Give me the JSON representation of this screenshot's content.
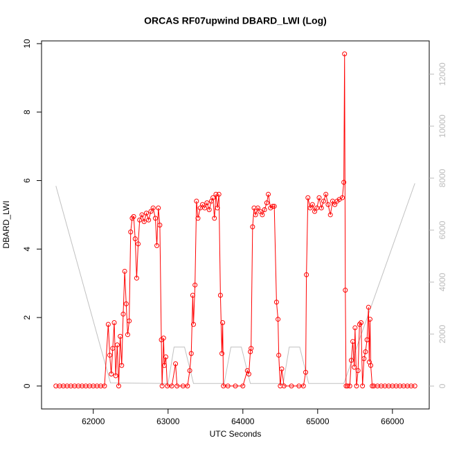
{
  "chart_data": {
    "type": "line",
    "title": "ORCAS RF07upwind DBARD_LWI (Log)",
    "xlabel": "UTC Seconds",
    "ylabel": "DBARD_LWI",
    "xlim": [
      61308,
      66492
    ],
    "xticks": [
      62000,
      63000,
      64000,
      65000,
      66000
    ],
    "ylim": [
      -0.67,
      10.08
    ],
    "yticks": [
      0,
      2,
      4,
      6,
      8,
      10
    ],
    "y2lim": [
      -880,
      13280
    ],
    "y2ticks": [
      0,
      2000,
      4000,
      6000,
      8000,
      10000,
      12000
    ],
    "series": [
      {
        "color": "#ff0000",
        "markers": true,
        "x": [
          61500,
          61550,
          61600,
          61650,
          61700,
          61750,
          61800,
          61850,
          61900,
          61950,
          62000,
          62050,
          62100,
          62150,
          62200,
          62220,
          62240,
          62260,
          62280,
          62300,
          62320,
          62340,
          62360,
          62380,
          62400,
          62420,
          62440,
          62460,
          62480,
          62500,
          62520,
          62540,
          62560,
          62580,
          62600,
          62620,
          62650,
          62680,
          62710,
          62740,
          62770,
          62800,
          62830,
          62850,
          62870,
          62890,
          62910,
          62920,
          62940,
          62950,
          62970,
          62990,
          63050,
          63100,
          63120,
          63200,
          63260,
          63290,
          63310,
          63330,
          63340,
          63360,
          63380,
          63400,
          63430,
          63460,
          63490,
          63520,
          63550,
          63580,
          63600,
          63620,
          63640,
          63660,
          63680,
          63700,
          63720,
          63730,
          63740,
          63800,
          63900,
          64000,
          64060,
          64080,
          64100,
          64110,
          64130,
          64150,
          64170,
          64200,
          64230,
          64260,
          64290,
          64320,
          64340,
          64370,
          64400,
          64420,
          64450,
          64470,
          64480,
          64500,
          64520,
          64550,
          64650,
          64750,
          64810,
          64840,
          64850,
          64870,
          64900,
          64930,
          64960,
          64990,
          65020,
          65050,
          65080,
          65110,
          65140,
          65170,
          65200,
          65230,
          65260,
          65290,
          65330,
          65350,
          65360,
          65370,
          65380,
          65400,
          65430,
          65450,
          65470,
          65490,
          65500,
          65520,
          65540,
          65560,
          65580,
          65600,
          65620,
          65640,
          65660,
          65680,
          65690,
          65700,
          65710,
          65730,
          65750,
          65800,
          65850,
          65900,
          65950,
          66000,
          66050,
          66100,
          66150,
          66200,
          66250,
          66300
        ],
        "values": [
          0,
          0,
          0,
          0,
          0,
          0,
          0,
          0,
          0,
          0,
          0,
          0,
          0,
          0,
          1.8,
          0.9,
          0.35,
          1.1,
          1.85,
          0.3,
          1.2,
          0,
          1.45,
          0.6,
          2.1,
          3.35,
          2.4,
          1.5,
          1.9,
          4.5,
          4.9,
          4.95,
          4.3,
          3.15,
          4.15,
          4.85,
          5.0,
          4.8,
          5.05,
          4.85,
          5.1,
          5.2,
          4.9,
          4.1,
          5.2,
          4.7,
          1.35,
          0,
          1.4,
          0.6,
          0.85,
          0,
          0,
          0.65,
          0,
          0,
          0,
          0.45,
          0.95,
          2.65,
          1.8,
          2.95,
          5.4,
          4.9,
          5.2,
          5.3,
          5.2,
          5.35,
          5.15,
          5.4,
          5.5,
          4.9,
          5.6,
          5.2,
          5.6,
          2.65,
          0.95,
          1.85,
          0,
          0,
          0,
          0,
          0.45,
          0.35,
          1.0,
          1.1,
          4.65,
          5.2,
          5.0,
          5.2,
          5.1,
          5.0,
          5.15,
          5.35,
          5.6,
          5.2,
          5.25,
          5.25,
          2.45,
          1.95,
          0.9,
          0,
          0.5,
          0,
          0,
          0,
          0,
          0.4,
          3.25,
          5.5,
          5.2,
          5.3,
          5.1,
          5.2,
          5.5,
          5.2,
          5.4,
          5.6,
          5.3,
          5.0,
          5.4,
          5.3,
          5.4,
          5.45,
          5.5,
          5.95,
          9.7,
          2.8,
          0,
          0,
          0,
          0.75,
          1.3,
          0.55,
          1.7,
          0,
          0.45,
          1.8,
          1.85,
          0,
          0.8,
          1.0,
          1.35,
          2.3,
          0.7,
          1.95,
          0.6,
          0,
          0,
          0,
          0,
          0,
          0,
          0,
          0,
          0,
          0,
          0,
          0,
          0
        ]
      },
      {
        "color": "#c0c0c0",
        "axis": "y2",
        "markers": false,
        "x": [
          61500,
          62230,
          63000,
          63080,
          63220,
          63340,
          63750,
          63840,
          63980,
          64100,
          64540,
          64620,
          64760,
          64880,
          65350,
          66300
        ],
        "values": [
          7700,
          120,
          100,
          1500,
          1500,
          100,
          100,
          1500,
          1500,
          100,
          100,
          1500,
          1500,
          100,
          100,
          7800
        ]
      }
    ]
  }
}
